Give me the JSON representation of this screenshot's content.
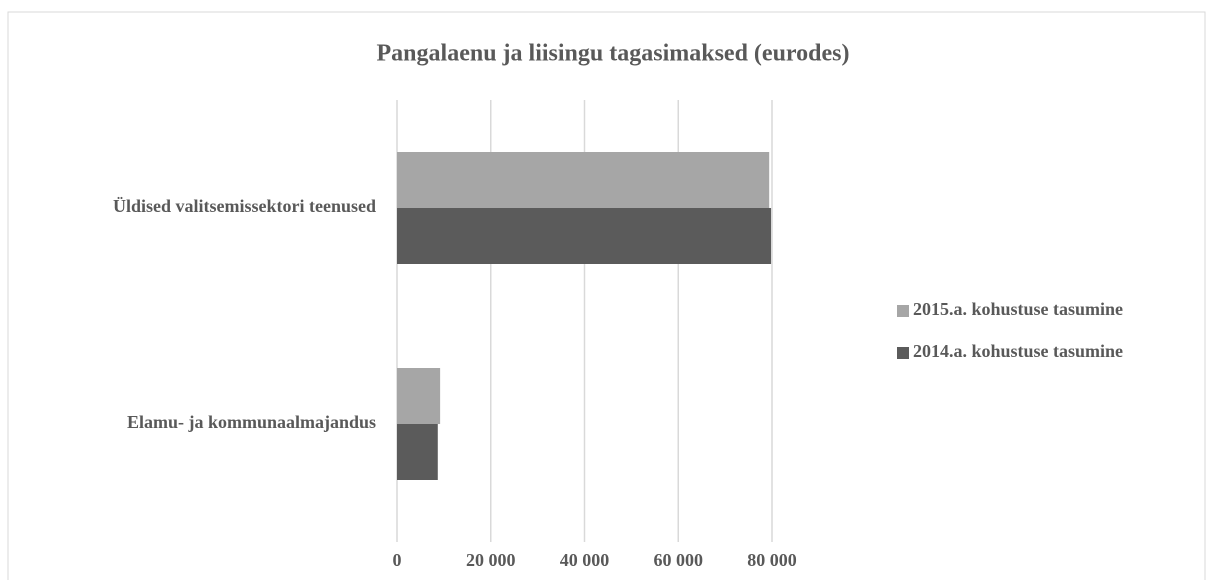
{
  "chart_data": {
    "type": "hbar",
    "title": "Pangalaenu ja liisingu  tagasimaksed (eurodes)",
    "categories": [
      "Üldised valitsemissektori teenused",
      "Elamu- ja kommunaalmajandus"
    ],
    "series": [
      {
        "name": "2015.a. kohustuse tasumine",
        "color": "#a6a6a6",
        "values": [
          79400,
          9200
        ]
      },
      {
        "name": "2014.a. kohustuse tasumine",
        "color": "#5b5b5b",
        "values": [
          79800,
          8700
        ]
      }
    ],
    "xlim": [
      0,
      80000
    ],
    "xticks": [
      0,
      {
        "value": 20000,
        "label": "20 000"
      },
      {
        "value": 40000,
        "label": "40 000"
      },
      {
        "value": 60000,
        "label": "60 000"
      },
      {
        "value": 80000,
        "label": "80 000"
      }
    ],
    "grid": true,
    "legend": "right"
  }
}
